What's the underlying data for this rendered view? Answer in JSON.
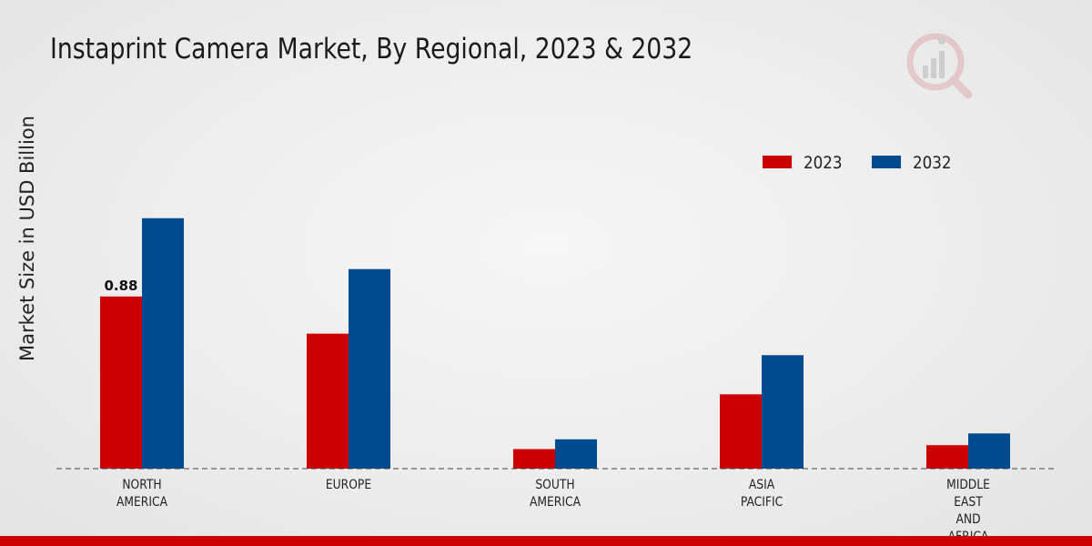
{
  "title": "Instaprint Camera Market, By Regional, 2023 & 2032",
  "chart_data": {
    "type": "bar",
    "title": "Instaprint Camera Market, By Regional, 2023 & 2032",
    "xlabel": "",
    "ylabel": "Market Size in USD Billion",
    "categories": [
      [
        "NORTH",
        "AMERICA"
      ],
      [
        "EUROPE"
      ],
      [
        "SOUTH",
        "AMERICA"
      ],
      [
        "ASIA",
        "PACIFIC"
      ],
      [
        "MIDDLE",
        "EAST",
        "AND",
        "AFRICA"
      ]
    ],
    "series": [
      {
        "name": "2023",
        "color": "#cc0000",
        "values": [
          0.88,
          0.69,
          0.1,
          0.38,
          0.12
        ]
      },
      {
        "name": "2032",
        "color": "#004a8f",
        "values": [
          1.28,
          1.02,
          0.15,
          0.58,
          0.18
        ]
      }
    ],
    "data_labels": [
      {
        "series": 0,
        "index": 0,
        "text": "0.88"
      }
    ],
    "ylim": [
      0,
      2.0
    ],
    "grid": false,
    "legend_position": "top-right"
  }
}
